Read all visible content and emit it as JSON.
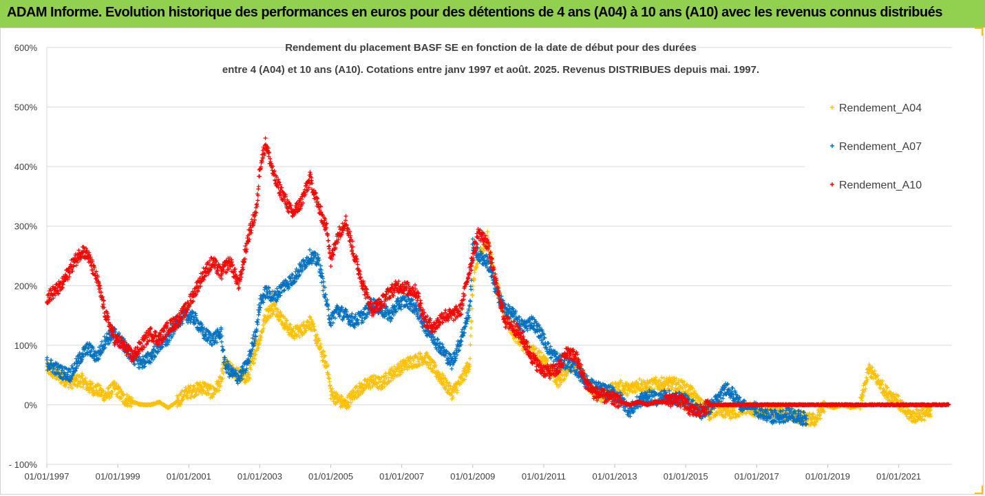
{
  "banner": {
    "title": "ADAM Informe. Evolution historique des performances en euros pour des détentions de 4 ans (A04) à 10 ans (A10) avec les revenus connus distribués",
    "background": "#92d050"
  },
  "chart_data": {
    "type": "scatter",
    "title_line1": "Rendement du placement BASF SE en fonction de la date de début pour des durées",
    "title_line2": "entre 4 (A04) et 10 ans (A10). Cotations entre janv 1997 et août. 2025. Revenus DISTRIBUES depuis mai. 1997.",
    "xlabel": "",
    "ylabel": "",
    "x_tick_labels": [
      "01/01/1997",
      "01/01/1999",
      "01/01/2001",
      "01/01/2003",
      "01/01/2005",
      "01/01/2007",
      "01/01/2009",
      "01/01/2011",
      "01/01/2013",
      "01/01/2015",
      "01/01/2017",
      "01/01/2019",
      "01/01/2021"
    ],
    "x_range": [
      "1997-01-01",
      "2022-07-01"
    ],
    "y_tick_labels": [
      "- 100%",
      "0%",
      "100%",
      "200%",
      "300%",
      "400%",
      "500%",
      "600%"
    ],
    "ylim": [
      -100,
      600
    ],
    "y_gridlines": [
      -100,
      0,
      100,
      200,
      300,
      400,
      500,
      600
    ],
    "grid": true,
    "legend_position": "right",
    "series": [
      {
        "name": "Rendement_A04",
        "color": "#ffc000",
        "points": [
          [
            "1997-01",
            62
          ],
          [
            "1997-06",
            45
          ],
          [
            "1997-09",
            38
          ],
          [
            "1998-01",
            42
          ],
          [
            "1998-03",
            30
          ],
          [
            "1998-06",
            25
          ],
          [
            "1998-09",
            15
          ],
          [
            "1998-12",
            30
          ],
          [
            "1999-03",
            10
          ],
          [
            "1999-06",
            5
          ],
          [
            "1999-09",
            0
          ],
          [
            "1999-12",
            0
          ],
          [
            "2000-03",
            5
          ],
          [
            "2000-06",
            -5
          ],
          [
            "2000-09",
            5
          ],
          [
            "2000-12",
            20
          ],
          [
            "2001-03",
            25
          ],
          [
            "2001-06",
            30
          ],
          [
            "2001-09",
            20
          ],
          [
            "2001-12",
            40
          ],
          [
            "2002-01",
            70
          ],
          [
            "2002-03",
            60
          ],
          [
            "2002-06",
            50
          ],
          [
            "2002-09",
            45
          ],
          [
            "2002-12",
            100
          ],
          [
            "2003-01",
            110
          ],
          [
            "2003-03",
            150
          ],
          [
            "2003-06",
            165
          ],
          [
            "2003-09",
            140
          ],
          [
            "2003-12",
            120
          ],
          [
            "2004-03",
            125
          ],
          [
            "2004-06",
            140
          ],
          [
            "2004-09",
            100
          ],
          [
            "2004-12",
            60
          ],
          [
            "2005-01",
            20
          ],
          [
            "2005-03",
            10
          ],
          [
            "2005-06",
            0
          ],
          [
            "2005-09",
            20
          ],
          [
            "2005-12",
            30
          ],
          [
            "2006-03",
            40
          ],
          [
            "2006-06",
            35
          ],
          [
            "2006-09",
            50
          ],
          [
            "2006-12",
            60
          ],
          [
            "2007-03",
            70
          ],
          [
            "2007-06",
            75
          ],
          [
            "2007-09",
            80
          ],
          [
            "2007-12",
            60
          ],
          [
            "2008-03",
            40
          ],
          [
            "2008-06",
            20
          ],
          [
            "2008-09",
            40
          ],
          [
            "2008-12",
            70
          ],
          [
            "2009-01",
            200
          ],
          [
            "2009-03",
            250
          ],
          [
            "2009-06",
            280
          ],
          [
            "2009-09",
            200
          ],
          [
            "2009-12",
            150
          ],
          [
            "2010-03",
            120
          ],
          [
            "2010-06",
            100
          ],
          [
            "2010-09",
            90
          ],
          [
            "2010-12",
            80
          ],
          [
            "2011-03",
            60
          ],
          [
            "2011-06",
            40
          ],
          [
            "2011-09",
            60
          ],
          [
            "2011-12",
            70
          ],
          [
            "2012-03",
            40
          ],
          [
            "2012-06",
            20
          ],
          [
            "2012-09",
            15
          ],
          [
            "2012-12",
            25
          ],
          [
            "2013-03",
            30
          ],
          [
            "2013-06",
            25
          ],
          [
            "2013-09",
            35
          ],
          [
            "2013-12",
            30
          ],
          [
            "2014-03",
            35
          ],
          [
            "2014-06",
            35
          ],
          [
            "2014-09",
            35
          ],
          [
            "2014-12",
            30
          ],
          [
            "2015-03",
            20
          ],
          [
            "2015-06",
            0
          ],
          [
            "2015-09",
            -15
          ],
          [
            "2015-12",
            -5
          ],
          [
            "2016-03",
            -15
          ],
          [
            "2016-06",
            -10
          ],
          [
            "2016-09",
            -5
          ],
          [
            "2016-12",
            -10
          ],
          [
            "2017-03",
            -10
          ],
          [
            "2017-06",
            -10
          ],
          [
            "2017-09",
            -15
          ],
          [
            "2017-12",
            -15
          ],
          [
            "2018-03",
            -20
          ],
          [
            "2018-06",
            -25
          ],
          [
            "2018-09",
            -25
          ],
          [
            "2018-12",
            0
          ],
          [
            "2019-03",
            -5
          ],
          [
            "2019-06",
            0
          ],
          [
            "2019-09",
            -5
          ],
          [
            "2019-12",
            0
          ],
          [
            "2020-03",
            60
          ],
          [
            "2020-06",
            40
          ],
          [
            "2020-09",
            20
          ],
          [
            "2020-12",
            10
          ],
          [
            "2021-03",
            -10
          ],
          [
            "2021-06",
            -20
          ],
          [
            "2021-09",
            -15
          ],
          [
            "2021-12",
            -15
          ]
        ]
      },
      {
        "name": "Rendement_A07",
        "color": "#0070c0",
        "points": [
          [
            "1997-01",
            70
          ],
          [
            "1997-06",
            55
          ],
          [
            "1997-09",
            50
          ],
          [
            "1998-01",
            85
          ],
          [
            "1998-03",
            95
          ],
          [
            "1998-06",
            80
          ],
          [
            "1998-09",
            110
          ],
          [
            "1998-12",
            120
          ],
          [
            "1999-03",
            100
          ],
          [
            "1999-06",
            80
          ],
          [
            "1999-09",
            70
          ],
          [
            "1999-12",
            80
          ],
          [
            "2000-03",
            100
          ],
          [
            "2000-06",
            110
          ],
          [
            "2000-09",
            140
          ],
          [
            "2000-12",
            150
          ],
          [
            "2001-03",
            145
          ],
          [
            "2001-06",
            120
          ],
          [
            "2001-09",
            110
          ],
          [
            "2001-12",
            120
          ],
          [
            "2002-01",
            70
          ],
          [
            "2002-03",
            55
          ],
          [
            "2002-06",
            45
          ],
          [
            "2002-09",
            70
          ],
          [
            "2002-12",
            130
          ],
          [
            "2003-01",
            170
          ],
          [
            "2003-03",
            190
          ],
          [
            "2003-06",
            180
          ],
          [
            "2003-09",
            200
          ],
          [
            "2003-12",
            210
          ],
          [
            "2004-03",
            230
          ],
          [
            "2004-06",
            250
          ],
          [
            "2004-09",
            240
          ],
          [
            "2004-12",
            160
          ],
          [
            "2005-01",
            140
          ],
          [
            "2005-03",
            160
          ],
          [
            "2005-06",
            150
          ],
          [
            "2005-09",
            140
          ],
          [
            "2005-12",
            150
          ],
          [
            "2006-03",
            170
          ],
          [
            "2006-06",
            160
          ],
          [
            "2006-09",
            150
          ],
          [
            "2006-12",
            170
          ],
          [
            "2007-03",
            175
          ],
          [
            "2007-06",
            160
          ],
          [
            "2007-09",
            130
          ],
          [
            "2007-12",
            110
          ],
          [
            "2008-03",
            90
          ],
          [
            "2008-06",
            70
          ],
          [
            "2008-09",
            110
          ],
          [
            "2008-12",
            160
          ],
          [
            "2009-01",
            270
          ],
          [
            "2009-03",
            250
          ],
          [
            "2009-06",
            240
          ],
          [
            "2009-09",
            190
          ],
          [
            "2009-12",
            160
          ],
          [
            "2010-03",
            150
          ],
          [
            "2010-06",
            130
          ],
          [
            "2010-09",
            140
          ],
          [
            "2010-12",
            120
          ],
          [
            "2011-03",
            90
          ],
          [
            "2011-06",
            75
          ],
          [
            "2011-09",
            70
          ],
          [
            "2011-12",
            60
          ],
          [
            "2012-03",
            40
          ],
          [
            "2012-06",
            30
          ],
          [
            "2012-09",
            25
          ],
          [
            "2012-12",
            20
          ],
          [
            "2013-03",
            10
          ],
          [
            "2013-06",
            -10
          ],
          [
            "2013-09",
            5
          ],
          [
            "2013-12",
            15
          ],
          [
            "2014-03",
            10
          ],
          [
            "2014-06",
            15
          ],
          [
            "2014-09",
            10
          ],
          [
            "2014-12",
            10
          ],
          [
            "2015-03",
            0
          ],
          [
            "2015-06",
            -15
          ],
          [
            "2015-09",
            -5
          ],
          [
            "2015-12",
            10
          ],
          [
            "2016-03",
            30
          ],
          [
            "2016-06",
            10
          ],
          [
            "2016-09",
            -5
          ],
          [
            "2016-12",
            -5
          ],
          [
            "2017-03",
            -15
          ],
          [
            "2017-06",
            -20
          ],
          [
            "2017-09",
            -20
          ],
          [
            "2017-12",
            -15
          ],
          [
            "2018-03",
            -20
          ],
          [
            "2018-06",
            -25
          ]
        ]
      },
      {
        "name": "Rendement_A10",
        "color": "#ff0000",
        "points": [
          [
            "1997-01",
            180
          ],
          [
            "1997-06",
            200
          ],
          [
            "1997-09",
            230
          ],
          [
            "1998-01",
            260
          ],
          [
            "1998-03",
            250
          ],
          [
            "1998-06",
            210
          ],
          [
            "1998-09",
            150
          ],
          [
            "1998-12",
            110
          ],
          [
            "1999-03",
            100
          ],
          [
            "1999-06",
            80
          ],
          [
            "1999-09",
            100
          ],
          [
            "1999-12",
            120
          ],
          [
            "2000-03",
            110
          ],
          [
            "2000-06",
            130
          ],
          [
            "2000-09",
            140
          ],
          [
            "2000-12",
            160
          ],
          [
            "2001-03",
            190
          ],
          [
            "2001-06",
            220
          ],
          [
            "2001-09",
            240
          ],
          [
            "2001-12",
            220
          ],
          [
            "2002-01",
            230
          ],
          [
            "2002-03",
            240
          ],
          [
            "2002-06",
            200
          ],
          [
            "2002-09",
            280
          ],
          [
            "2002-12",
            330
          ],
          [
            "2003-01",
            400
          ],
          [
            "2003-03",
            440
          ],
          [
            "2003-06",
            380
          ],
          [
            "2003-09",
            350
          ],
          [
            "2003-12",
            320
          ],
          [
            "2004-03",
            340
          ],
          [
            "2004-06",
            380
          ],
          [
            "2004-09",
            330
          ],
          [
            "2004-12",
            290
          ],
          [
            "2005-01",
            240
          ],
          [
            "2005-03",
            280
          ],
          [
            "2005-06",
            310
          ],
          [
            "2005-09",
            250
          ],
          [
            "2005-12",
            200
          ],
          [
            "2006-03",
            160
          ],
          [
            "2006-06",
            170
          ],
          [
            "2006-09",
            190
          ],
          [
            "2006-12",
            200
          ],
          [
            "2007-03",
            195
          ],
          [
            "2007-06",
            190
          ],
          [
            "2007-09",
            140
          ],
          [
            "2007-12",
            130
          ],
          [
            "2008-03",
            150
          ],
          [
            "2008-06",
            150
          ],
          [
            "2008-09",
            160
          ],
          [
            "2008-12",
            230
          ],
          [
            "2009-01",
            250
          ],
          [
            "2009-03",
            290
          ],
          [
            "2009-06",
            270
          ],
          [
            "2009-09",
            200
          ],
          [
            "2009-12",
            140
          ],
          [
            "2010-03",
            130
          ],
          [
            "2010-06",
            110
          ],
          [
            "2010-09",
            80
          ],
          [
            "2010-12",
            60
          ],
          [
            "2011-03",
            55
          ],
          [
            "2011-06",
            60
          ],
          [
            "2011-09",
            90
          ],
          [
            "2011-12",
            80
          ],
          [
            "2012-03",
            40
          ],
          [
            "2012-06",
            20
          ],
          [
            "2012-09",
            15
          ],
          [
            "2012-12",
            10
          ],
          [
            "2013-03",
            5
          ],
          [
            "2013-06",
            0
          ],
          [
            "2013-09",
            5
          ],
          [
            "2013-12",
            0
          ],
          [
            "2014-03",
            5
          ],
          [
            "2014-06",
            5
          ],
          [
            "2014-09",
            10
          ],
          [
            "2014-12",
            5
          ],
          [
            "2015-03",
            -10
          ],
          [
            "2015-06",
            -10
          ],
          [
            "2015-09",
            0
          ],
          [
            "2015-12",
            0
          ],
          [
            "2016-06",
            0
          ],
          [
            "2016-12",
            0
          ],
          [
            "2017-06",
            0
          ],
          [
            "2017-12",
            0
          ],
          [
            "2018-06",
            0
          ],
          [
            "2018-12",
            0
          ],
          [
            "2019-06",
            0
          ],
          [
            "2019-12",
            0
          ],
          [
            "2020-06",
            0
          ],
          [
            "2020-12",
            0
          ],
          [
            "2021-06",
            0
          ],
          [
            "2021-12",
            0
          ],
          [
            "2022-06",
            0
          ]
        ]
      }
    ]
  }
}
